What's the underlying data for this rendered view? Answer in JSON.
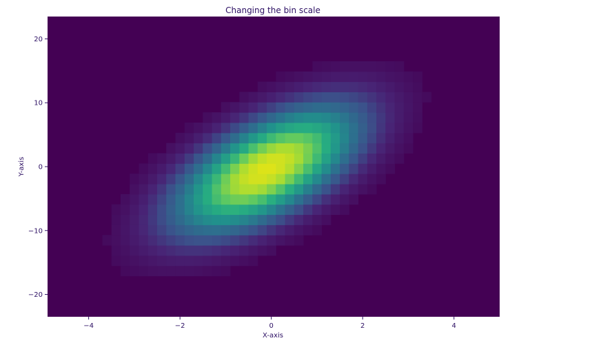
{
  "chart_data": {
    "type": "heatmap",
    "title": "Changing the bin scale",
    "xlabel": "X-axis",
    "ylabel": "Y-axis",
    "xlim": [
      -4.9,
      5.0
    ],
    "ylim": [
      -23.5,
      23.5
    ],
    "x_ticks": [
      -4,
      -2,
      0,
      2,
      4
    ],
    "x_tick_labels": [
      "−4",
      "−2",
      "0",
      "2",
      "4"
    ],
    "y_ticks": [
      -20,
      -10,
      0,
      10,
      20
    ],
    "y_tick_labels": [
      "−20",
      "−10",
      "0",
      "10",
      "20"
    ],
    "colormap": "viridis",
    "background_color": "#440154",
    "grid": false,
    "distribution": {
      "center": [
        -0.1,
        -0.4
      ],
      "std_x": 1.05,
      "std_y": 5.2,
      "correlation": 0.62
    },
    "bin_width_x": 0.2,
    "bin_height_y": 1.6
  }
}
